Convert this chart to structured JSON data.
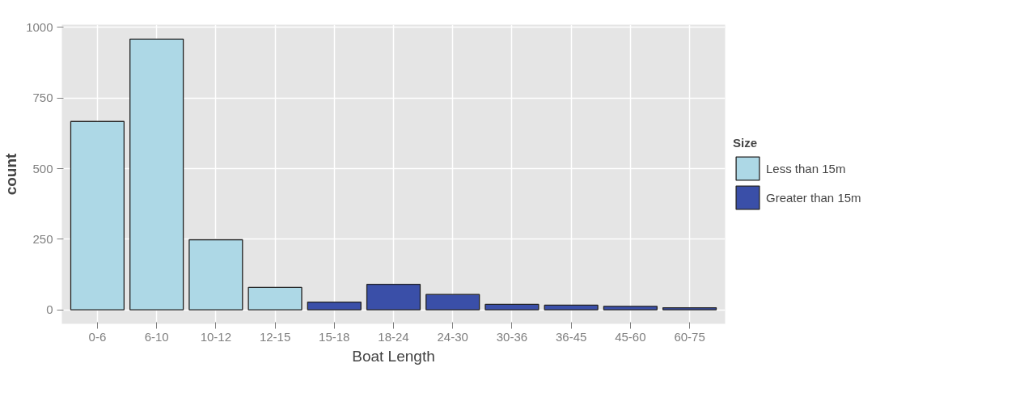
{
  "chart_data": {
    "type": "bar",
    "xlabel": "Boat Length",
    "ylabel": "count",
    "legend_title": "Size",
    "categories": [
      "0-6",
      "6-10",
      "10-12",
      "12-15",
      "15-18",
      "18-24",
      "24-30",
      "30-36",
      "36-45",
      "45-60",
      "60-75"
    ],
    "series": [
      {
        "name": "Less than 15m",
        "color": "#add8e6",
        "values": [
          667,
          959,
          248,
          79,
          null,
          null,
          null,
          null,
          null,
          null,
          null
        ]
      },
      {
        "name": "Greater than 15m",
        "color": "#3a4fa8",
        "values": [
          null,
          null,
          null,
          null,
          27,
          90,
          54,
          19,
          16,
          12,
          7
        ]
      }
    ],
    "ylim": [
      -50,
      1010
    ],
    "yticks": [
      0,
      250,
      500,
      750,
      1000
    ],
    "grid": true,
    "legend": "right"
  }
}
